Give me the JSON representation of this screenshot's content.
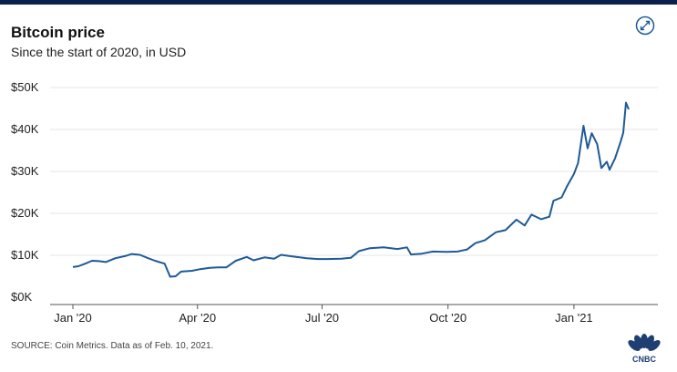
{
  "header": {
    "title": "Bitcoin price",
    "subtitle": "Since the start of 2020, in USD"
  },
  "footer": {
    "source": "SOURCE: Coin Metrics. Data as of Feb. 10, 2021.",
    "logo_text": "CNBC"
  },
  "icons": {
    "expand": "expand-icon",
    "logo": "cnbc-peacock-icon"
  },
  "colors": {
    "line": "#1f5a96",
    "topbar": "#0b1f4d",
    "grid": "#e6e6e6"
  },
  "chart_data": {
    "type": "line",
    "title": "Bitcoin price",
    "subtitle": "Since the start of 2020, in USD",
    "xlabel": "",
    "ylabel": "",
    "x_range": [
      "2020-01-01",
      "2021-02-10"
    ],
    "ylim": [
      0,
      50000
    ],
    "y_ticks": [
      {
        "value": 0,
        "label": "$0K"
      },
      {
        "value": 10000,
        "label": "$10K"
      },
      {
        "value": 20000,
        "label": "$20K"
      },
      {
        "value": 30000,
        "label": "$30K"
      },
      {
        "value": 40000,
        "label": "$40K"
      },
      {
        "value": 50000,
        "label": "$50K"
      }
    ],
    "x_ticks": [
      {
        "date": "2020-01-01",
        "label": "Jan '20"
      },
      {
        "date": "2020-04-01",
        "label": "Apr '20"
      },
      {
        "date": "2020-07-01",
        "label": "Jul '20"
      },
      {
        "date": "2020-10-01",
        "label": "Oct '20"
      },
      {
        "date": "2021-01-01",
        "label": "Jan '21"
      }
    ],
    "grid": true,
    "legend": "none",
    "series": [
      {
        "points": [
          [
            "2020-01-01",
            7200
          ],
          [
            "2020-01-05",
            7400
          ],
          [
            "2020-01-10",
            8000
          ],
          [
            "2020-01-15",
            8700
          ],
          [
            "2020-01-20",
            8600
          ],
          [
            "2020-01-25",
            8400
          ],
          [
            "2020-02-01",
            9300
          ],
          [
            "2020-02-08",
            9800
          ],
          [
            "2020-02-13",
            10300
          ],
          [
            "2020-02-19",
            10100
          ],
          [
            "2020-02-25",
            9300
          ],
          [
            "2020-03-01",
            8700
          ],
          [
            "2020-03-08",
            8000
          ],
          [
            "2020-03-12",
            4900
          ],
          [
            "2020-03-16",
            5000
          ],
          [
            "2020-03-20",
            6100
          ],
          [
            "2020-03-28",
            6300
          ],
          [
            "2020-04-03",
            6700
          ],
          [
            "2020-04-10",
            7000
          ],
          [
            "2020-04-16",
            7100
          ],
          [
            "2020-04-22",
            7100
          ],
          [
            "2020-04-29",
            8700
          ],
          [
            "2020-05-07",
            9600
          ],
          [
            "2020-05-12",
            8800
          ],
          [
            "2020-05-20",
            9500
          ],
          [
            "2020-05-27",
            9200
          ],
          [
            "2020-06-01",
            10100
          ],
          [
            "2020-06-10",
            9700
          ],
          [
            "2020-06-20",
            9300
          ],
          [
            "2020-06-28",
            9100
          ],
          [
            "2020-07-05",
            9100
          ],
          [
            "2020-07-15",
            9200
          ],
          [
            "2020-07-22",
            9400
          ],
          [
            "2020-07-28",
            11000
          ],
          [
            "2020-08-05",
            11700
          ],
          [
            "2020-08-15",
            11900
          ],
          [
            "2020-08-25",
            11500
          ],
          [
            "2020-09-01",
            11900
          ],
          [
            "2020-09-04",
            10200
          ],
          [
            "2020-09-12",
            10400
          ],
          [
            "2020-09-20",
            10900
          ],
          [
            "2020-09-30",
            10800
          ],
          [
            "2020-10-08",
            10900
          ],
          [
            "2020-10-15",
            11400
          ],
          [
            "2020-10-21",
            12900
          ],
          [
            "2020-10-28",
            13600
          ],
          [
            "2020-11-05",
            15500
          ],
          [
            "2020-11-12",
            16000
          ],
          [
            "2020-11-20",
            18500
          ],
          [
            "2020-11-26",
            17100
          ],
          [
            "2020-12-01",
            19700
          ],
          [
            "2020-12-08",
            18600
          ],
          [
            "2020-12-14",
            19200
          ],
          [
            "2020-12-17",
            23000
          ],
          [
            "2020-12-23",
            23800
          ],
          [
            "2020-12-27",
            26500
          ],
          [
            "2021-01-01",
            29400
          ],
          [
            "2021-01-04",
            32000
          ],
          [
            "2021-01-08",
            40900
          ],
          [
            "2021-01-11",
            35500
          ],
          [
            "2021-01-14",
            39100
          ],
          [
            "2021-01-18",
            36500
          ],
          [
            "2021-01-21",
            30800
          ],
          [
            "2021-01-25",
            32300
          ],
          [
            "2021-01-27",
            30400
          ],
          [
            "2021-01-31",
            33100
          ],
          [
            "2021-02-04",
            37000
          ],
          [
            "2021-02-06",
            39200
          ],
          [
            "2021-02-08",
            46400
          ],
          [
            "2021-02-10",
            44800
          ]
        ]
      }
    ]
  }
}
